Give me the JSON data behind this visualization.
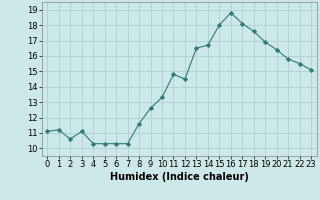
{
  "x": [
    0,
    1,
    2,
    3,
    4,
    5,
    6,
    7,
    8,
    9,
    10,
    11,
    12,
    13,
    14,
    15,
    16,
    17,
    18,
    19,
    20,
    21,
    22,
    23
  ],
  "y": [
    11.1,
    11.2,
    10.6,
    11.1,
    10.3,
    10.3,
    10.3,
    10.3,
    11.6,
    12.6,
    13.3,
    14.8,
    14.5,
    16.5,
    16.7,
    18.0,
    18.8,
    18.1,
    17.6,
    16.9,
    16.4,
    15.8,
    15.5,
    15.1
  ],
  "xlabel": "Humidex (Indice chaleur)",
  "ylim": [
    9.5,
    19.5
  ],
  "xlim": [
    -0.5,
    23.5
  ],
  "yticks": [
    10,
    11,
    12,
    13,
    14,
    15,
    16,
    17,
    18,
    19
  ],
  "xticks": [
    0,
    1,
    2,
    3,
    4,
    5,
    6,
    7,
    8,
    9,
    10,
    11,
    12,
    13,
    14,
    15,
    16,
    17,
    18,
    19,
    20,
    21,
    22,
    23
  ],
  "line_color": "#2e7d6e",
  "marker": "D",
  "marker_size": 2.2,
  "bg_color": "#cce8e8",
  "grid_color": "#aacccc",
  "tick_fontsize": 6,
  "xlabel_fontsize": 7
}
